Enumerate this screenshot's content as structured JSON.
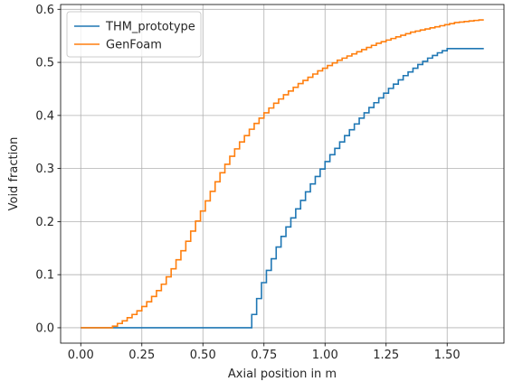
{
  "chart_data": {
    "type": "line",
    "step": true,
    "xlabel": "Axial position in m",
    "ylabel": "Void fraction",
    "xlim": [
      -0.0825,
      1.7325
    ],
    "ylim": [
      -0.029,
      0.609
    ],
    "xticks": [
      0.0,
      0.25,
      0.5,
      0.75,
      1.0,
      1.25,
      1.5
    ],
    "xtick_labels": [
      "0.00",
      "0.25",
      "0.50",
      "0.75",
      "1.00",
      "1.25",
      "1.50"
    ],
    "yticks": [
      0.0,
      0.1,
      0.2,
      0.3,
      0.4,
      0.5,
      0.6
    ],
    "ytick_labels": [
      "0.0",
      "0.1",
      "0.2",
      "0.3",
      "0.4",
      "0.5",
      "0.6"
    ],
    "grid": true,
    "legend_position": "top-left",
    "series": [
      {
        "name": "THM_prototype",
        "color": "#1f77b4",
        "x": [
          0.0,
          0.7,
          0.72,
          0.74,
          0.76,
          0.78,
          0.8,
          0.82,
          0.84,
          0.86,
          0.88,
          0.9,
          0.92,
          0.94,
          0.96,
          0.98,
          1.0,
          1.02,
          1.04,
          1.06,
          1.08,
          1.1,
          1.12,
          1.14,
          1.16,
          1.18,
          1.2,
          1.22,
          1.24,
          1.26,
          1.28,
          1.3,
          1.32,
          1.34,
          1.36,
          1.38,
          1.4,
          1.42,
          1.44,
          1.46,
          1.48,
          1.5,
          1.52,
          1.54,
          1.56,
          1.58,
          1.6,
          1.62,
          1.65
        ],
        "y": [
          0.0,
          0.025,
          0.055,
          0.085,
          0.108,
          0.13,
          0.152,
          0.172,
          0.19,
          0.207,
          0.224,
          0.24,
          0.256,
          0.271,
          0.285,
          0.299,
          0.313,
          0.326,
          0.338,
          0.35,
          0.362,
          0.373,
          0.384,
          0.395,
          0.405,
          0.415,
          0.424,
          0.433,
          0.442,
          0.451,
          0.459,
          0.467,
          0.475,
          0.482,
          0.489,
          0.496,
          0.502,
          0.508,
          0.513,
          0.518,
          0.522,
          0.526,
          0.526,
          0.526,
          0.526,
          0.526,
          0.526,
          0.526,
          0.526
        ]
      },
      {
        "name": "GenFoam",
        "color": "#ff7f0e",
        "x": [
          0.0,
          0.13,
          0.15,
          0.17,
          0.19,
          0.21,
          0.23,
          0.25,
          0.27,
          0.29,
          0.31,
          0.33,
          0.35,
          0.37,
          0.39,
          0.41,
          0.43,
          0.45,
          0.47,
          0.49,
          0.51,
          0.53,
          0.55,
          0.57,
          0.59,
          0.61,
          0.63,
          0.65,
          0.67,
          0.69,
          0.71,
          0.73,
          0.75,
          0.77,
          0.79,
          0.81,
          0.83,
          0.85,
          0.87,
          0.89,
          0.91,
          0.93,
          0.95,
          0.97,
          0.99,
          1.01,
          1.03,
          1.05,
          1.07,
          1.09,
          1.11,
          1.13,
          1.15,
          1.17,
          1.19,
          1.21,
          1.23,
          1.25,
          1.27,
          1.29,
          1.31,
          1.33,
          1.35,
          1.37,
          1.39,
          1.41,
          1.43,
          1.45,
          1.47,
          1.49,
          1.51,
          1.53,
          1.55,
          1.57,
          1.59,
          1.61,
          1.63,
          1.65
        ],
        "y": [
          0.0,
          0.003,
          0.008,
          0.013,
          0.019,
          0.025,
          0.032,
          0.04,
          0.049,
          0.059,
          0.07,
          0.082,
          0.096,
          0.111,
          0.128,
          0.145,
          0.163,
          0.182,
          0.201,
          0.22,
          0.239,
          0.257,
          0.275,
          0.292,
          0.308,
          0.323,
          0.337,
          0.35,
          0.362,
          0.374,
          0.385,
          0.395,
          0.405,
          0.414,
          0.423,
          0.431,
          0.439,
          0.446,
          0.453,
          0.46,
          0.466,
          0.472,
          0.478,
          0.484,
          0.489,
          0.494,
          0.499,
          0.504,
          0.508,
          0.512,
          0.516,
          0.52,
          0.524,
          0.528,
          0.532,
          0.536,
          0.539,
          0.542,
          0.545,
          0.548,
          0.551,
          0.554,
          0.557,
          0.559,
          0.561,
          0.563,
          0.565,
          0.567,
          0.569,
          0.571,
          0.573,
          0.575,
          0.576,
          0.577,
          0.578,
          0.579,
          0.58,
          0.58
        ]
      }
    ]
  }
}
